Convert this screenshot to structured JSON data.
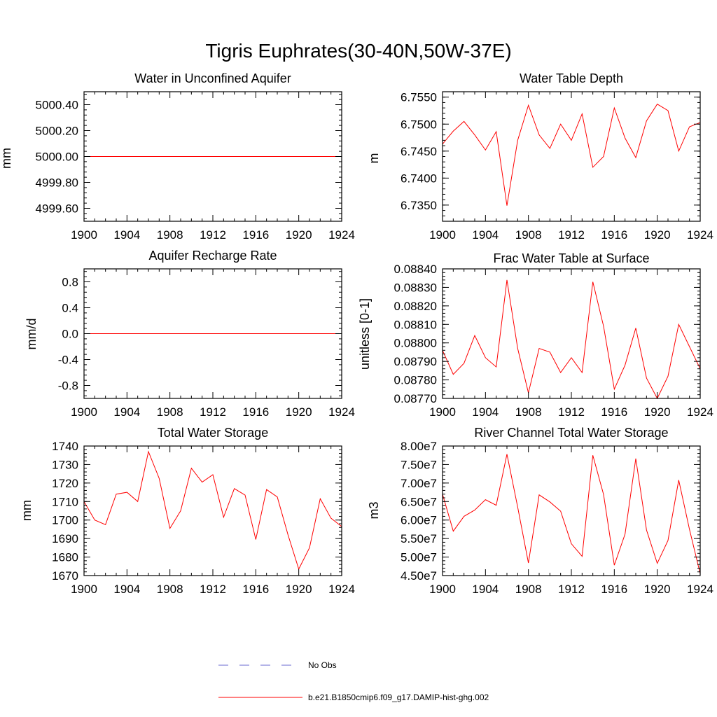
{
  "figure": {
    "title": "Tigris Euphrates(30-40N,50W-37E)"
  },
  "colors": {
    "model_line": "#ff0000",
    "obs_line": "#6a6ad0"
  },
  "legend": {
    "position": "bottom-center",
    "entries": [
      {
        "label": "No Obs",
        "style": "dashed",
        "color": "#6a6ad0"
      },
      {
        "label": "b.e21.B1850cmip6.f09_g17.DAMIP-hist-ghg.002",
        "style": "solid",
        "color": "#ff0000"
      }
    ]
  },
  "chart_data": [
    {
      "type": "line",
      "title": "Water in Unconfined Aquifer",
      "ylabel": "mm",
      "xlabel": "",
      "xlim": [
        1900,
        1924
      ],
      "ylim": [
        4999.5,
        5000.5
      ],
      "xticks": [
        1900,
        1904,
        1908,
        1912,
        1916,
        1920,
        1924
      ],
      "xtick_labels": [
        "1900",
        "1904",
        "1908",
        "1912",
        "1916",
        "1920",
        "1924"
      ],
      "yticks": [
        4999.6,
        4999.8,
        5000.0,
        5000.2,
        5000.4
      ],
      "ytick_labels": [
        "4999.60",
        "4999.80",
        "5000.00",
        "5000.20",
        "5000.40"
      ],
      "x": [
        1900,
        1901,
        1902,
        1903,
        1904,
        1905,
        1906,
        1907,
        1908,
        1909,
        1910,
        1911,
        1912,
        1913,
        1914,
        1915,
        1916,
        1917,
        1918,
        1919,
        1920,
        1921,
        1922,
        1923,
        1924
      ],
      "series": [
        {
          "name": "b.e21.B1850cmip6.f09_g17.DAMIP-hist-ghg.002",
          "values": [
            5000,
            5000,
            5000,
            5000,
            5000,
            5000,
            5000,
            5000,
            5000,
            5000,
            5000,
            5000,
            5000,
            5000,
            5000,
            5000,
            5000,
            5000,
            5000,
            5000,
            5000,
            5000,
            5000,
            5000,
            5000
          ]
        }
      ]
    },
    {
      "type": "line",
      "title": "Water Table Depth",
      "ylabel": "m",
      "xlabel": "",
      "xlim": [
        1900,
        1924
      ],
      "ylim": [
        6.732,
        6.756
      ],
      "xticks": [
        1900,
        1904,
        1908,
        1912,
        1916,
        1920,
        1924
      ],
      "xtick_labels": [
        "1900",
        "1904",
        "1908",
        "1912",
        "1916",
        "1920",
        "1924"
      ],
      "yticks": [
        6.735,
        6.74,
        6.745,
        6.75,
        6.755
      ],
      "ytick_labels": [
        "6.7350",
        "6.7400",
        "6.7450",
        "6.7500",
        "6.7550"
      ],
      "x": [
        1900,
        1901,
        1902,
        1903,
        1904,
        1905,
        1906,
        1907,
        1908,
        1909,
        1910,
        1911,
        1912,
        1913,
        1914,
        1915,
        1916,
        1917,
        1918,
        1919,
        1920,
        1921,
        1922,
        1923,
        1924
      ],
      "series": [
        {
          "name": "b.e21.B1850cmip6.f09_g17.DAMIP-hist-ghg.002",
          "values": [
            6.7463,
            6.7487,
            6.7505,
            6.748,
            6.7452,
            6.7486,
            6.7349,
            6.747,
            6.7535,
            6.748,
            6.7455,
            6.75,
            6.747,
            6.7519,
            6.742,
            6.744,
            6.753,
            6.7474,
            6.7438,
            6.7506,
            6.7537,
            6.7525,
            6.745,
            6.7495,
            6.7503
          ]
        }
      ]
    },
    {
      "type": "line",
      "title": "Aquifer Recharge Rate",
      "ylabel": "mm/d",
      "xlabel": "",
      "xlim": [
        1900,
        1924
      ],
      "ylim": [
        -1.0,
        1.0
      ],
      "xticks": [
        1900,
        1904,
        1908,
        1912,
        1916,
        1920,
        1924
      ],
      "xtick_labels": [
        "1900",
        "1904",
        "1908",
        "1912",
        "1916",
        "1920",
        "1924"
      ],
      "yticks": [
        -0.8,
        -0.4,
        0.0,
        0.4,
        0.8
      ],
      "ytick_labels": [
        "-0.8",
        "-0.4",
        "0.0",
        "0.4",
        "0.8"
      ],
      "x": [
        1900,
        1901,
        1902,
        1903,
        1904,
        1905,
        1906,
        1907,
        1908,
        1909,
        1910,
        1911,
        1912,
        1913,
        1914,
        1915,
        1916,
        1917,
        1918,
        1919,
        1920,
        1921,
        1922,
        1923,
        1924
      ],
      "series": [
        {
          "name": "b.e21.B1850cmip6.f09_g17.DAMIP-hist-ghg.002",
          "values": [
            0,
            0,
            0,
            0,
            0,
            0,
            0,
            0,
            0,
            0,
            0,
            0,
            0,
            0,
            0,
            0,
            0,
            0,
            0,
            0,
            0,
            0,
            0,
            0,
            0
          ]
        }
      ]
    },
    {
      "type": "line",
      "title": "Frac Water Table at Surface",
      "ylabel": "unitless [0-1]",
      "xlabel": "",
      "xlim": [
        1900,
        1924
      ],
      "ylim": [
        0.0877,
        0.0884
      ],
      "xticks": [
        1900,
        1904,
        1908,
        1912,
        1916,
        1920,
        1924
      ],
      "xtick_labels": [
        "1900",
        "1904",
        "1908",
        "1912",
        "1916",
        "1920",
        "1924"
      ],
      "yticks": [
        0.0877,
        0.0878,
        0.0879,
        0.088,
        0.0881,
        0.0882,
        0.0883,
        0.0884
      ],
      "ytick_labels": [
        "0.08770",
        "0.08780",
        "0.08790",
        "0.08800",
        "0.08810",
        "0.08820",
        "0.08830",
        "0.08840"
      ],
      "x": [
        1900,
        1901,
        1902,
        1903,
        1904,
        1905,
        1906,
        1907,
        1908,
        1909,
        1910,
        1911,
        1912,
        1913,
        1914,
        1915,
        1916,
        1917,
        1918,
        1919,
        1920,
        1921,
        1922,
        1923,
        1924
      ],
      "series": [
        {
          "name": "b.e21.B1850cmip6.f09_g17.DAMIP-hist-ghg.002",
          "values": [
            0.08796,
            0.08783,
            0.08789,
            0.08804,
            0.08792,
            0.08787,
            0.08834,
            0.08797,
            0.08773,
            0.08797,
            0.08795,
            0.08784,
            0.08792,
            0.08784,
            0.08833,
            0.08809,
            0.08775,
            0.08788,
            0.08808,
            0.08781,
            0.0877,
            0.08782,
            0.0881,
            0.08798,
            0.08786
          ]
        }
      ]
    },
    {
      "type": "line",
      "title": "Total Water Storage",
      "ylabel": "mm",
      "xlabel": "",
      "xlim": [
        1900,
        1924
      ],
      "ylim": [
        1670,
        1740
      ],
      "xticks": [
        1900,
        1904,
        1908,
        1912,
        1916,
        1920,
        1924
      ],
      "xtick_labels": [
        "1900",
        "1904",
        "1908",
        "1912",
        "1916",
        "1920",
        "1924"
      ],
      "yticks": [
        1670,
        1680,
        1690,
        1700,
        1710,
        1720,
        1730,
        1740
      ],
      "ytick_labels": [
        "1670",
        "1680",
        "1690",
        "1700",
        "1710",
        "1720",
        "1730",
        "1740"
      ],
      "x": [
        1900,
        1901,
        1902,
        1903,
        1904,
        1905,
        1906,
        1907,
        1908,
        1909,
        1910,
        1911,
        1912,
        1913,
        1914,
        1915,
        1916,
        1917,
        1918,
        1919,
        1920,
        1921,
        1922,
        1923,
        1924
      ],
      "series": [
        {
          "name": "b.e21.B1850cmip6.f09_g17.DAMIP-hist-ghg.002",
          "values": [
            1710,
            1700,
            1697.5,
            1714,
            1715,
            1710,
            1737,
            1722.5,
            1695.5,
            1705,
            1728,
            1720.5,
            1724.5,
            1701.5,
            1717,
            1713.5,
            1689.5,
            1716.5,
            1712.5,
            1692,
            1673.5,
            1685,
            1711.5,
            1701,
            1696.5
          ]
        }
      ]
    },
    {
      "type": "line",
      "title": "River Channel Total Water Storage",
      "ylabel": "m3",
      "xlabel": "",
      "xlim": [
        1900,
        1924
      ],
      "ylim": [
        45000000,
        80000000
      ],
      "xticks": [
        1900,
        1904,
        1908,
        1912,
        1916,
        1920,
        1924
      ],
      "xtick_labels": [
        "1900",
        "1904",
        "1908",
        "1912",
        "1916",
        "1920",
        "1924"
      ],
      "yticks": [
        45000000,
        50000000,
        55000000,
        60000000,
        65000000,
        70000000,
        75000000,
        80000000
      ],
      "ytick_labels": [
        "4.50e7",
        "5.00e7",
        "5.50e7",
        "6.00e7",
        "6.50e7",
        "7.00e7",
        "7.50e7",
        "8.00e7"
      ],
      "x": [
        1900,
        1901,
        1902,
        1903,
        1904,
        1905,
        1906,
        1907,
        1908,
        1909,
        1910,
        1911,
        1912,
        1913,
        1914,
        1915,
        1916,
        1917,
        1918,
        1919,
        1920,
        1921,
        1922,
        1923,
        1924
      ],
      "series": [
        {
          "name": "b.e21.B1850cmip6.f09_g17.DAMIP-hist-ghg.002",
          "values": [
            67000000,
            57000000,
            61000000,
            62700000,
            65500000,
            64000000,
            77800000,
            63500000,
            48400000,
            66800000,
            64900000,
            62400000,
            53600000,
            50200000,
            77500000,
            66900000,
            47800000,
            56200000,
            76600000,
            57300000,
            48300000,
            54500000,
            70800000,
            57500000,
            45500000
          ]
        }
      ]
    }
  ]
}
